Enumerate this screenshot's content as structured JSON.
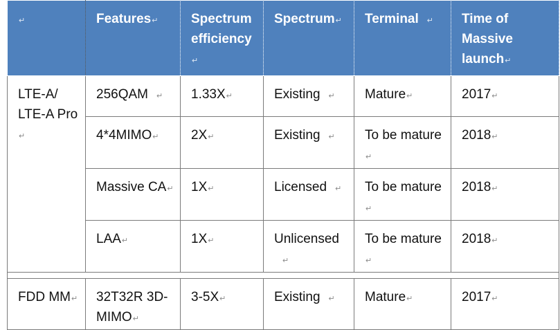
{
  "mark": "↵",
  "header": {
    "blank": "",
    "features": "Features",
    "efficiency": "Spectrum efficiency",
    "spectrum": "Spectrum",
    "terminal": "Terminal",
    "launch": "Time of Massive launch"
  },
  "groups": [
    {
      "name": "LTE-A/ LTE-A Pro",
      "rows": [
        {
          "feature": "256QAM",
          "efficiency": "1.33X",
          "spectrum": "Existing",
          "terminal": "Mature",
          "launch": "2017"
        },
        {
          "feature": "4*4MIMO",
          "efficiency": "2X",
          "spectrum": "Existing",
          "terminal": "To be mature",
          "launch": "2018"
        },
        {
          "feature": "Massive CA",
          "efficiency": "1X",
          "spectrum": "Licensed",
          "terminal": "To be mature",
          "launch": "2018"
        },
        {
          "feature": "LAA",
          "efficiency": "1X",
          "spectrum": "Unlicensed",
          "terminal": "To be mature",
          "launch": "2018"
        }
      ]
    },
    {
      "name": "FDD MM",
      "rows": [
        {
          "feature": "32T32R 3D-MIMO",
          "efficiency": "3-5X",
          "spectrum": "Existing",
          "terminal": "Mature",
          "launch": "2017"
        }
      ]
    }
  ]
}
